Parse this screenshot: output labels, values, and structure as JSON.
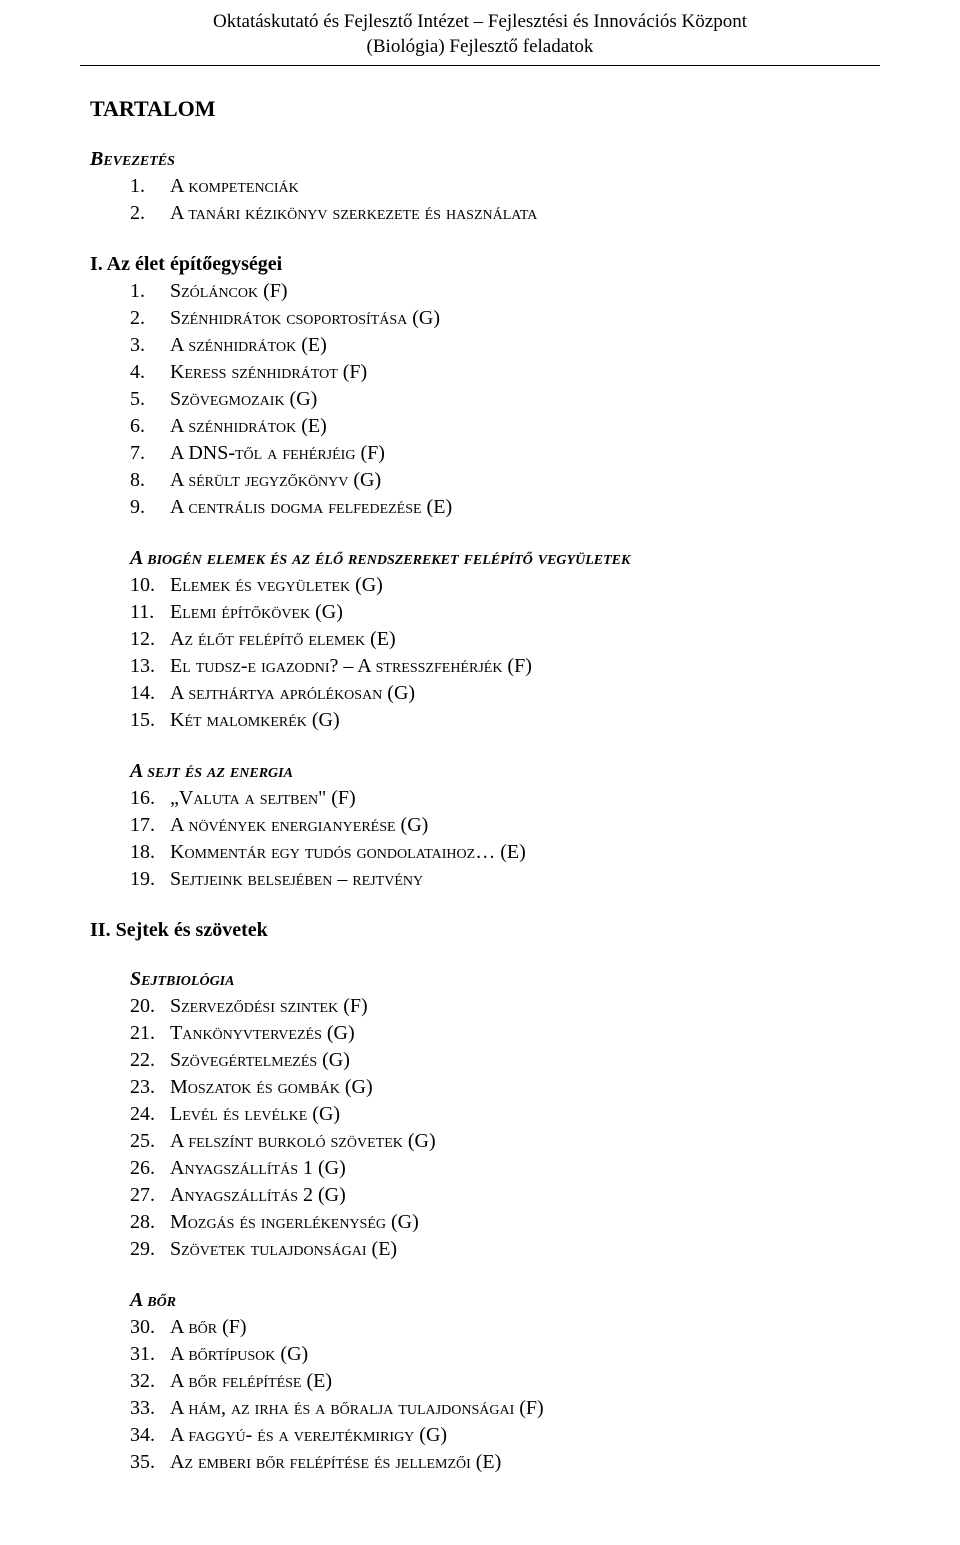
{
  "colors": {
    "text": "#000000",
    "background": "#ffffff",
    "rule": "#000000"
  },
  "typography": {
    "family": "Times New Roman",
    "header_fontsize_pt": 14,
    "title_fontsize_pt": 17,
    "body_fontsize_pt": 15
  },
  "header": {
    "line1": "Oktatáskutató és Fejlesztő Intézet – Fejlesztési és Innovációs Központ",
    "line2": "(Biológia) Fejlesztő feladatok"
  },
  "title": "TARTALOM",
  "sections": [
    {
      "heading": "Bevezetés",
      "heading_style": "section-heading",
      "items": [
        {
          "num": "1.",
          "label": "A kompetenciák"
        },
        {
          "num": "2.",
          "label": "A tanári kézikönyv szerkezete és használata"
        }
      ]
    },
    {
      "heading": "I. Az élet építőegységei",
      "heading_style": "chapter-heading",
      "items": [
        {
          "num": "1.",
          "label": "Szóláncok (F)"
        },
        {
          "num": "2.",
          "label": "Szénhidrátok csoportosítása (G)"
        },
        {
          "num": "3.",
          "label": "A szénhidrátok (E)"
        },
        {
          "num": "4.",
          "label": "Keress szénhidrátot (F)"
        },
        {
          "num": "5.",
          "label": "Szövegmozaik (G)"
        },
        {
          "num": "6.",
          "label": "A szénhidrátok (E)"
        },
        {
          "num": "7.",
          "label": "A DNS-től a fehérjéig (F)"
        },
        {
          "num": "8.",
          "label": "A sérült jegyzőkönyv (G)"
        },
        {
          "num": "9.",
          "label": "A centrális dogma felfedezése (E)"
        }
      ]
    },
    {
      "heading": "A biogén elemek és az élő rendszereket felépítő vegyületek",
      "heading_style": "sub-heading indent-heading",
      "items": [
        {
          "num": "10.",
          "label": "Elemek és vegyületek (G)"
        },
        {
          "num": "11.",
          "label": "Elemi építőkövek (G)"
        },
        {
          "num": "12.",
          "label": "Az élőt felépítő elemek (E)"
        },
        {
          "num": "13.",
          "label": "El tudsz-e igazodni? – A stresszfehérjék (F)"
        },
        {
          "num": "14.",
          "label": "A sejthártya aprólékosan (G)"
        },
        {
          "num": "15.",
          "label": "Két malomkerék (G)"
        }
      ]
    },
    {
      "heading": "A sejt és az energia",
      "heading_style": "sub-heading indent-heading",
      "items": [
        {
          "num": "16.",
          "label": "„Valuta a sejtben\" (F)"
        },
        {
          "num": "17.",
          "label": "A növények energianyerése (G)"
        },
        {
          "num": "18.",
          "label": "Kommentár egy tudós gondolataihoz… (E)"
        },
        {
          "num": "19.",
          "label": "Sejtjeink belsejében – rejtvény"
        }
      ]
    },
    {
      "heading": "II. Sejtek és szövetek",
      "heading_style": "chapter-heading",
      "items": []
    },
    {
      "heading": "Sejtbiológia",
      "heading_style": "sub-heading indent-heading",
      "items": [
        {
          "num": "20.",
          "label": "Szerveződési szintek (F)"
        },
        {
          "num": "21.",
          "label": "Tankönyvtervezés (G)"
        },
        {
          "num": "22.",
          "label": "Szövegértelmezés (G)"
        },
        {
          "num": "23.",
          "label": "Moszatok és gombák (G)"
        },
        {
          "num": "24.",
          "label": "Levél és levélke (G)"
        },
        {
          "num": "25.",
          "label": "A felszínt burkoló szövetek (G)"
        },
        {
          "num": "26.",
          "label": "Anyagszállítás 1 (G)"
        },
        {
          "num": "27.",
          "label": "Anyagszállítás 2 (G)"
        },
        {
          "num": "28.",
          "label": "Mozgás és ingerlékenység (G)"
        },
        {
          "num": "29.",
          "label": "Szövetek tulajdonságai (E)"
        }
      ]
    },
    {
      "heading": "A bőr",
      "heading_style": "sub-heading indent-heading",
      "items": [
        {
          "num": "30.",
          "label": "A bőr (F)"
        },
        {
          "num": "31.",
          "label": "A bőrtípusok (G)"
        },
        {
          "num": "32.",
          "label": "A bőr felépítése (E)"
        },
        {
          "num": "33.",
          "label": "A hám, az irha és a bőralja tulajdonságai (F)"
        },
        {
          "num": "34.",
          "label": "A faggyú- és a verejtékmirigy (G)"
        },
        {
          "num": "35.",
          "label": "Az emberi bőr felépítése és jellemzői (E)"
        }
      ]
    }
  ]
}
